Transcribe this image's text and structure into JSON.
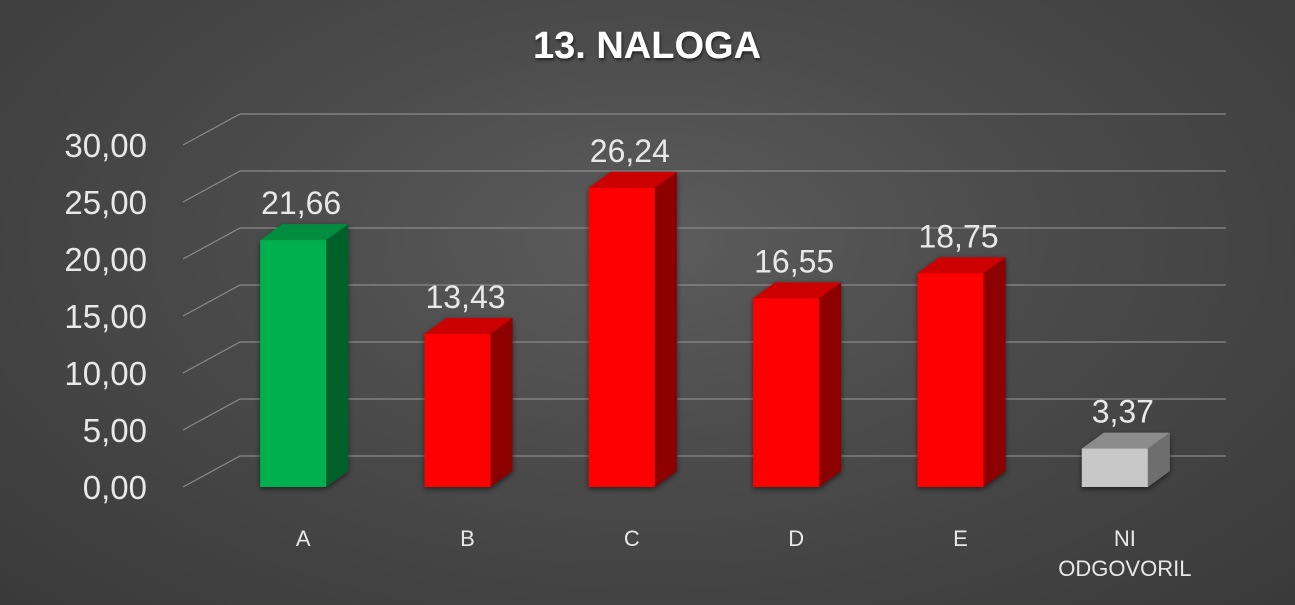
{
  "chart_data": {
    "type": "bar",
    "title": "13. NALOGA",
    "categories": [
      "A",
      "B",
      "C",
      "D",
      "E",
      "NI ODGOVORIL"
    ],
    "values": [
      21.66,
      13.43,
      26.24,
      16.55,
      18.75,
      3.37
    ],
    "value_labels": [
      "21,66",
      "13,43",
      "26,24",
      "16,55",
      "18,75",
      "3,37"
    ],
    "ylim": [
      0,
      30
    ],
    "yticks": [
      "0,00",
      "5,00",
      "10,00",
      "15,00",
      "20,00",
      "25,00",
      "30,00"
    ],
    "grid": true,
    "style": "3d-column",
    "colors": {
      "A": "#00b050",
      "B": "#ff0000",
      "C": "#ff0000",
      "D": "#ff0000",
      "E": "#ff0000",
      "NI ODGOVORIL": "#c8c8c8"
    }
  }
}
